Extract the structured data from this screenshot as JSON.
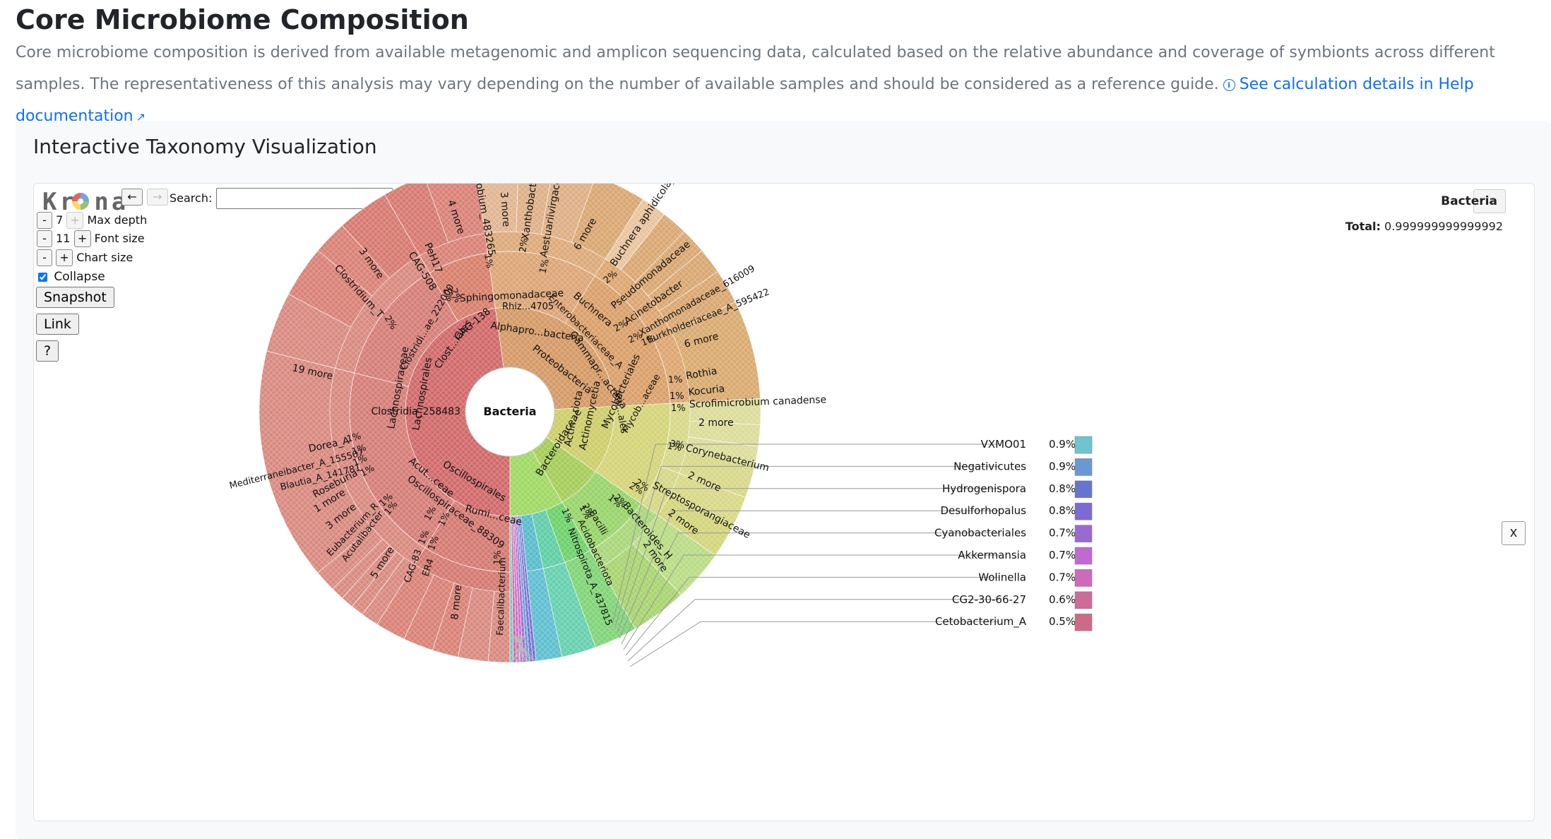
{
  "page": {
    "title": "Core Microbiome Composition",
    "description": "Core microbiome composition is derived from available metagenomic and amplicon sequencing data, calculated based on the relative abundance and coverage of symbionts across different samples. The representativeness of this analysis may vary depending on the number of available samples and should be considered as a reference guide.",
    "help_link": "See calculation details in Help documentation",
    "card_title": "Interactive Taxonomy Visualization"
  },
  "krona": {
    "logo": "Kr na",
    "back": "←",
    "forward": "→",
    "search_label": "Search:",
    "search_value": "",
    "search_clear": "x",
    "max_depth_label": "Max depth",
    "max_depth_value": "7",
    "font_size_label": "Font size",
    "font_size_value": "11",
    "chart_size_label": "Chart size",
    "minus": "-",
    "plus": "+",
    "collapse_label": "Collapse",
    "collapse_checked": true,
    "snapshot": "Snapshot",
    "link": "Link",
    "help": "?",
    "focus_node": "Bacteria",
    "focus_nav": "↔",
    "total_label": "Total:",
    "total_value": "0.999999999999992",
    "close": "x",
    "center_label": "Bacteria"
  },
  "ring1": [
    {
      "label": "Clostridia_258483",
      "color": "#d1696a"
    },
    {
      "label": "Proteobacteria",
      "color": "#d49a66"
    },
    {
      "label": "Actin...riota",
      "color": "#cdcd6a"
    },
    {
      "label": "Bacteroidaceae",
      "color": "#a6cc58"
    }
  ],
  "ring2": [
    {
      "label": "Lachnospirales",
      "color": "#d57e78"
    },
    {
      "label": "Oscillospirales",
      "color": "#d47a72"
    },
    {
      "label": "Clost...iales",
      "color": "#d57e78"
    },
    {
      "label": "CAG-138",
      "color": "#d8806c"
    },
    {
      "label": "Alphapro...bacteria",
      "color": "#dca577"
    },
    {
      "label": "Gammapr...acteria",
      "color": "#d9a06a"
    },
    {
      "label": "Actinomycetia",
      "color": "#d4d478"
    },
    {
      "label": "Bacteroidaceae",
      "color": "#97d46a"
    },
    {
      "label": "Bacilli",
      "color": "#6ed16a"
    },
    {
      "label": "Acidobacteriota",
      "color": "#5fcea6"
    },
    {
      "label": "Nitrospirota_A_437815",
      "color": "#58bccc"
    }
  ],
  "outer_labels": [
    "Lachnospiraceae",
    "19 more",
    "Dorea_A",
    "Mediterraneibacter_A_155507",
    "Blautia_A_141781",
    "Roseburia",
    "1 more",
    "3 more",
    "Eubacterium_R",
    "Acutalibacter",
    "5 more",
    "CAG-83",
    "ER4",
    "8 more",
    "Faecalibacterium",
    "Acut...ceae",
    "Oscillospiraceae_88309",
    "Rumi...ceae",
    "Clostridium_T",
    "3 more",
    "CAG-508",
    "PeH17",
    "4 more",
    "Clostridi...ae_222000",
    "obium_483265",
    "3 more",
    "Xanthobacteraceae",
    "Aestuariivirgaceae",
    "6 more",
    "Sphingomonadaceae",
    "Rhiz...4705",
    "Buchnera aphidicola_E",
    "Pseudomonadaceae",
    "Acinetobacter",
    "Xanthomonadaceae_616009",
    "Burkholderiaceae_A_595422",
    "6 more",
    "Buchnera",
    "Enterobacteriaceae_A",
    "Rothia",
    "Kocuria",
    "Scrofimicrobium canadense",
    "2 more",
    "Corynebacterium",
    "2 more",
    "Streptosporangiaceae",
    "2 more",
    "Bacteroides_H",
    "2 more",
    "Acti...ales",
    "Mycobacteriales",
    "Mycob...aceae"
  ],
  "pct_labels": [
    "1%",
    "1%",
    "1%",
    "1%",
    "1%",
    "1%",
    "1%",
    "1%",
    "1%",
    "1%",
    "2%",
    "2%",
    "1%",
    "2%",
    "1%",
    "2%",
    "2%",
    "2%",
    "1%",
    "1%",
    "1%",
    "1%",
    "1%",
    "2%",
    "1%",
    "1%",
    "1%",
    "3%",
    "2%",
    "2%",
    "2%",
    "1%",
    "1%"
  ],
  "legend": [
    {
      "name": "VXMO01",
      "value": "0.9%",
      "color": "#6fc4cf"
    },
    {
      "name": "Negativicutes",
      "value": "0.9%",
      "color": "#6b98d2"
    },
    {
      "name": "Hydrogenispora",
      "value": "0.8%",
      "color": "#6673d1"
    },
    {
      "name": "Desulforhopalus",
      "value": "0.8%",
      "color": "#7d6ad3"
    },
    {
      "name": "Cyanobacteriales",
      "value": "0.7%",
      "color": "#9a6ad3"
    },
    {
      "name": "Akkermansia",
      "value": "0.7%",
      "color": "#c06ad0"
    },
    {
      "name": "Wolinella",
      "value": "0.7%",
      "color": "#cd6ab9"
    },
    {
      "name": "CG2-30-66-27",
      "value": "0.6%",
      "color": "#cf6a99"
    },
    {
      "name": "Cetobacterium_A",
      "value": "0.5%",
      "color": "#cf6a86"
    }
  ],
  "small_slice_colors": [
    "#7a6ad3",
    "#6673d1",
    "#6b98d2",
    "#9a6ad3",
    "#c06ad0",
    "#cd6ab9",
    "#cf6a99",
    "#6fc4cf"
  ]
}
